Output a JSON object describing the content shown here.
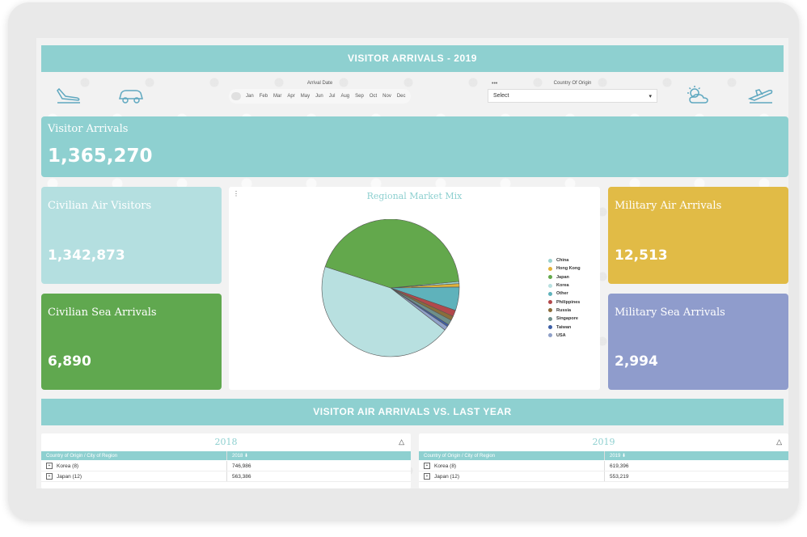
{
  "header": {
    "title": "VISITOR ARRIVALS - 2019"
  },
  "filters": {
    "arrival_date_label": "Arrival Date",
    "months": [
      "Jan",
      "Feb",
      "Mar",
      "Apr",
      "May",
      "Jun",
      "Jul",
      "Aug",
      "Sep",
      "Oct",
      "Nov",
      "Dec"
    ],
    "country_label": "Country Of Origin",
    "country_value": "Select",
    "menu_dots": "•••"
  },
  "icons": [
    "plane-landing-icon",
    "car-icon",
    "sun-cloud-icon",
    "plane-takeoff-icon"
  ],
  "kpis": {
    "visitor_arrivals": {
      "label": "Visitor Arrivals",
      "value": "1,365,270"
    },
    "civilian_air": {
      "label": "Civilian Air Visitors",
      "value": "1,342,873"
    },
    "civilian_sea": {
      "label": "Civilian Sea Arrivals",
      "value": "6,890"
    },
    "military_air": {
      "label": "Military Air Arrivals",
      "value": "12,513"
    },
    "military_sea": {
      "label": "Military Sea Arrivals",
      "value": "2,994"
    }
  },
  "colors": {
    "teal": "#8ed0d0",
    "light_teal": "#b4dfe0",
    "green": "#60a84f",
    "yellow": "#e1bb46",
    "purple": "#8f9ccc"
  },
  "chart_data": {
    "type": "pie",
    "title": "Regional Market Mix",
    "legend_position": "right",
    "labels": [
      "China",
      "Hong Kong",
      "Japan",
      "Korea",
      "Other",
      "Philippines",
      "Russia",
      "Singapore",
      "Taiwan",
      "USA"
    ],
    "values": [
      0.5,
      0.8,
      43.5,
      44.5,
      5.5,
      1.5,
      1.0,
      1.2,
      0.5,
      1.0
    ],
    "colors": [
      "#9bd2cf",
      "#e2b33a",
      "#63a84c",
      "#b8e0e0",
      "#5fb2bb",
      "#b2484b",
      "#8b6d3a",
      "#6e8f8a",
      "#3d5fa6",
      "#8fa0c8"
    ]
  },
  "section2": {
    "title": "VISITOR AIR ARRIVALS VS. LAST YEAR"
  },
  "tables": [
    {
      "year": "2018",
      "col1": "Country of Origin / City of Region",
      "col2": "2018",
      "rows": [
        {
          "country": "Korea (8)",
          "value": "746,986"
        },
        {
          "country": "Japan (12)",
          "value": "563,386"
        }
      ]
    },
    {
      "year": "2019",
      "col1": "Country of Origin / City of Region",
      "col2": "2019",
      "rows": [
        {
          "country": "Korea (8)",
          "value": "619,396"
        },
        {
          "country": "Japan (12)",
          "value": "553,219"
        }
      ]
    }
  ]
}
